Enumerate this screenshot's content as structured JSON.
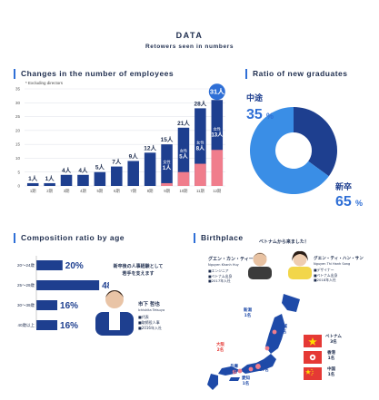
{
  "header": {
    "title": "DATA",
    "subtitle": "Retowers seen in numbers"
  },
  "employees": {
    "title": "Changes in the number of employees",
    "note": "* Excluding directors",
    "unit": "人",
    "women_label": "女性",
    "y_ticks": [
      "0",
      "5",
      "10",
      "15",
      "20",
      "25",
      "30",
      "35"
    ]
  },
  "graduates": {
    "title": "Ratio of new graduates",
    "mid_label": "中途",
    "mid_value": "35",
    "new_label": "新卒",
    "new_value": "65",
    "pct": "%"
  },
  "age": {
    "title": "Composition ratio by age",
    "rows": [
      {
        "label": "20～24歳",
        "value": "20%",
        "pct": 20
      },
      {
        "label": "25～29歳",
        "value": "48%",
        "pct": 48
      },
      {
        "label": "30～39歳",
        "value": "16%",
        "pct": 16
      },
      {
        "label": "40歳以上",
        "value": "16%",
        "pct": 16
      }
    ],
    "quote_line1": "新卒後の人事経験として",
    "quote_line2": "若手を支えます",
    "person_name": "市下 哲也",
    "person_roman": "Ichishita Tetsuya",
    "person_lines": [
      "■代表",
      "■取締役人事",
      "■2016年入社"
    ]
  },
  "birthplace": {
    "title": "Birthplace",
    "vietnam_caption": "ベトナムから来ました！",
    "person1_name": "グエン・カン・ティー",
    "person1_roman": "Nguyen Khanh Huy",
    "person1_lines": [
      "■エンジニア",
      "■ベトナム出身",
      "■2017年入社"
    ],
    "person2_name": "グエン・ティ・ハン・サン",
    "person2_roman": "Nguyen Thi Hanh Sang",
    "person2_lines": [
      "■デザイナー",
      "■ベトナム出身",
      "■2018年入社"
    ],
    "map_labels": [
      {
        "name": "宮城",
        "value": "1名"
      },
      {
        "name": "新潟",
        "value": "1名"
      },
      {
        "name": "愛知",
        "value": "1名"
      },
      {
        "name": "東京",
        "value": "17名"
      },
      {
        "name": "大阪",
        "value": "2名"
      },
      {
        "name": "兵庫",
        "value": "1名"
      }
    ],
    "countries": [
      {
        "name": "ベトナム",
        "value": "3名"
      },
      {
        "name": "香港",
        "value": "1名"
      },
      {
        "name": "中国",
        "value": "1名"
      }
    ]
  },
  "chart_data": [
    {
      "type": "bar",
      "title": "Changes in the number of employees",
      "categories": [
        "1期",
        "2期",
        "3期",
        "4期",
        "5期",
        "6期",
        "7期",
        "8期",
        "9期",
        "10期",
        "11期",
        "12期"
      ],
      "series": [
        {
          "name": "女性",
          "values": [
            0,
            0,
            0,
            0,
            0,
            0,
            0,
            0,
            1,
            5,
            8,
            13
          ]
        }
      ],
      "totals": [
        1,
        1,
        4,
        4,
        5,
        7,
        9,
        12,
        15,
        21,
        28,
        31
      ],
      "ylim": [
        0,
        35
      ],
      "grid": true
    },
    {
      "type": "pie",
      "title": "Ratio of new graduates",
      "categories": [
        "中途",
        "新卒"
      ],
      "values": [
        35,
        65
      ]
    },
    {
      "type": "bar",
      "title": "Composition ratio by age",
      "categories": [
        "20～24歳",
        "25～29歳",
        "30～39歳",
        "40歳以上"
      ],
      "values": [
        20,
        48,
        16,
        16
      ]
    }
  ],
  "colors": {
    "navy": "#1e3f8f",
    "blue": "#2f6fd6",
    "lightblue": "#3a8ee6",
    "pink": "#f07d8c",
    "grid": "#e3e6ec",
    "red": "#e53935",
    "map": "#1e4aa8"
  }
}
